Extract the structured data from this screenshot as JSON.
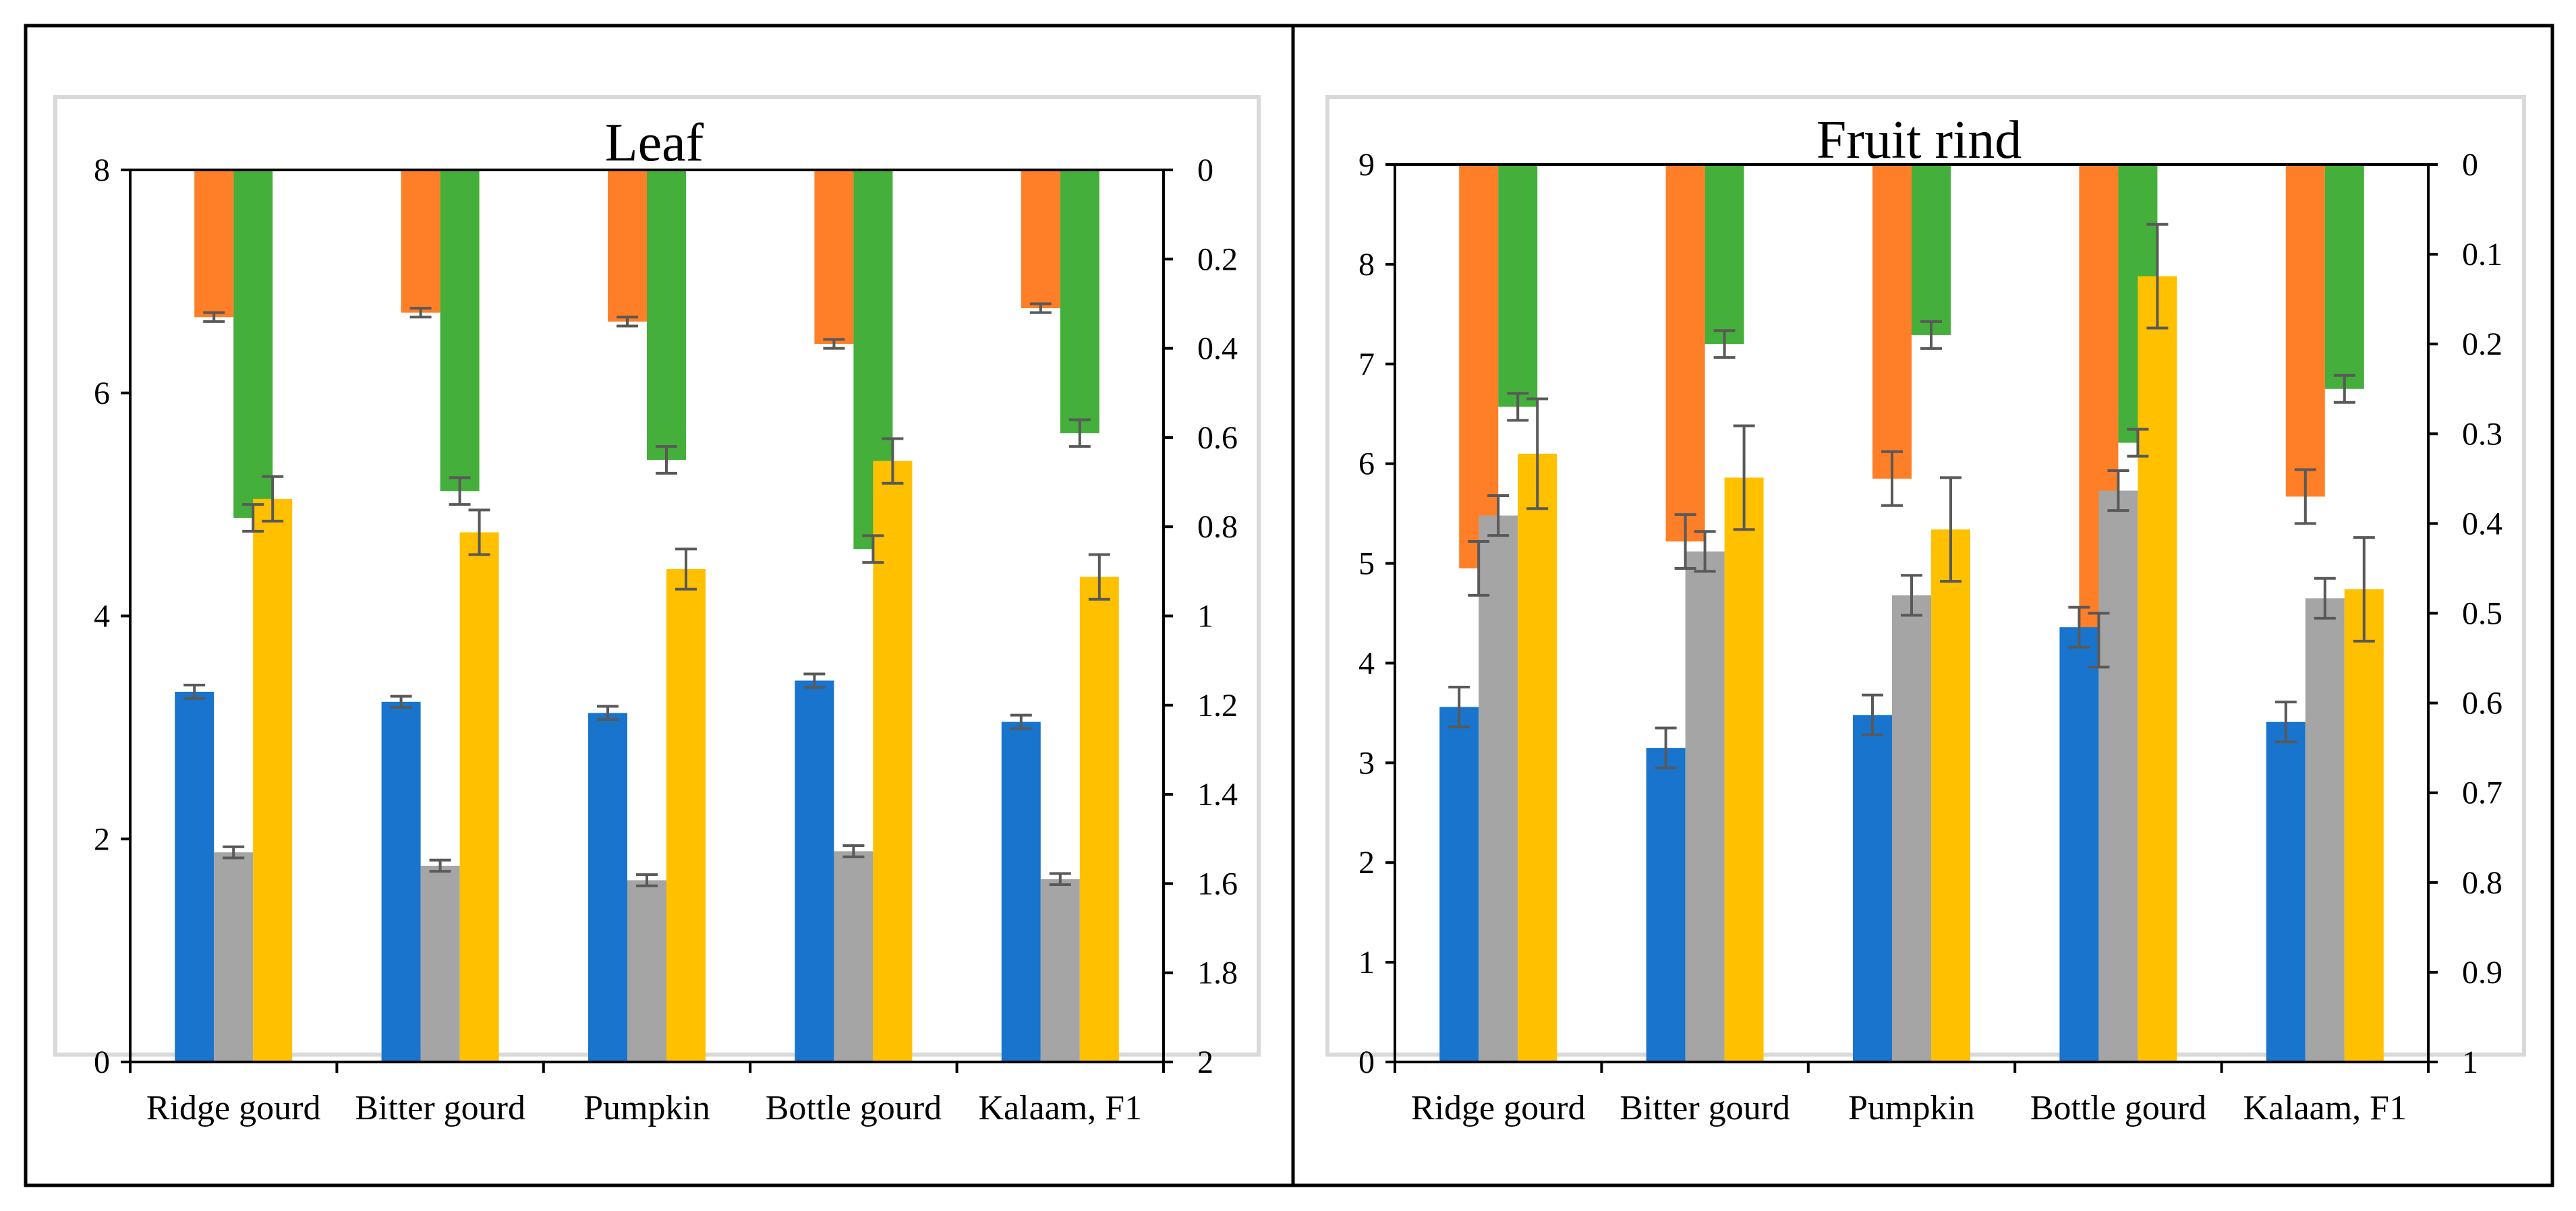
{
  "colors": {
    "blue": "#1874cd",
    "orange": "#fe7f27",
    "gray": "#a5a5a5",
    "yellow": "#ffc000",
    "green": "#44af3a",
    "error_bar": "#595959",
    "border": "#000000",
    "plot_border": "#d9d9d9"
  },
  "chart_data": [
    {
      "type": "bar",
      "title": "Leaf",
      "categories": [
        "Ridge gourd",
        "Bitter gourd",
        "Pumpkin",
        "Bottle gourd",
        "Kalaam, F1"
      ],
      "left_axis": {
        "range": [
          0,
          8
        ],
        "ticks": [
          0,
          2,
          4,
          6,
          8
        ],
        "tick_labels": [
          "0",
          "2",
          "4",
          "6",
          "8"
        ]
      },
      "right_axis": {
        "range": [
          0,
          2
        ],
        "inverted": true,
        "ticks": [
          0,
          0.2,
          0.4,
          0.6,
          0.8,
          1,
          1.2,
          1.4,
          1.6,
          1.8,
          2
        ],
        "tick_labels": [
          "0",
          "0.2",
          "0.4",
          "0.6",
          "0.8",
          "1",
          "1.2",
          "1.4",
          "1.6",
          "1.8",
          "2"
        ]
      },
      "left_series": [
        {
          "color": "blue",
          "values": [
            3.32,
            3.23,
            3.13,
            3.42,
            3.05
          ],
          "errors": [
            0.06,
            0.05,
            0.06,
            0.06,
            0.06
          ]
        },
        {
          "color": "gray",
          "values": [
            1.88,
            1.76,
            1.63,
            1.89,
            1.64
          ],
          "errors": [
            0.05,
            0.05,
            0.05,
            0.05,
            0.05
          ]
        },
        {
          "color": "yellow",
          "values": [
            5.05,
            4.75,
            4.42,
            5.39,
            4.35
          ],
          "errors": [
            0.2,
            0.2,
            0.18,
            0.2,
            0.2
          ]
        }
      ],
      "right_series": [
        {
          "color": "orange",
          "values": [
            0.33,
            0.32,
            0.34,
            0.39,
            0.31
          ],
          "errors": [
            0.01,
            0.01,
            0.01,
            0.01,
            0.01
          ]
        },
        {
          "color": "green",
          "values": [
            0.78,
            0.72,
            0.65,
            0.85,
            0.59
          ],
          "errors": [
            0.03,
            0.03,
            0.03,
            0.03,
            0.03
          ]
        }
      ],
      "grid": false,
      "legend": "none"
    },
    {
      "type": "bar",
      "title": "Fruit rind",
      "categories": [
        "Ridge gourd",
        "Bitter gourd",
        "Pumpkin",
        "Bottle gourd",
        "Kalaam, F1"
      ],
      "left_axis": {
        "range": [
          0,
          9
        ],
        "ticks": [
          0,
          1,
          2,
          3,
          4,
          5,
          6,
          7,
          8,
          9
        ],
        "tick_labels": [
          "0",
          "1",
          "2",
          "3",
          "4",
          "5",
          "6",
          "7",
          "8",
          "9"
        ]
      },
      "right_axis": {
        "range": [
          0,
          1
        ],
        "inverted": true,
        "ticks": [
          0,
          0.1,
          0.2,
          0.3,
          0.4,
          0.5,
          0.6,
          0.7,
          0.8,
          0.9,
          1
        ],
        "tick_labels": [
          "0",
          "0.1",
          "0.2",
          "0.3",
          "0.4",
          "0.5",
          "0.6",
          "0.7",
          "0.8",
          "0.9",
          "1"
        ]
      },
      "left_series": [
        {
          "color": "blue",
          "values": [
            3.56,
            3.15,
            3.48,
            4.36,
            3.41
          ],
          "errors": [
            0.2,
            0.2,
            0.2,
            0.2,
            0.2
          ]
        },
        {
          "color": "gray",
          "values": [
            5.48,
            5.12,
            4.68,
            5.73,
            4.65
          ],
          "errors": [
            0.2,
            0.2,
            0.2,
            0.2,
            0.2
          ]
        },
        {
          "color": "yellow",
          "values": [
            6.1,
            5.86,
            5.34,
            7.88,
            4.74
          ],
          "errors": [
            0.55,
            0.52,
            0.52,
            0.52,
            0.52
          ]
        }
      ],
      "right_series": [
        {
          "color": "orange",
          "values": [
            0.45,
            0.42,
            0.35,
            0.53,
            0.37
          ],
          "errors": [
            0.03,
            0.03,
            0.03,
            0.03,
            0.03
          ]
        },
        {
          "color": "green",
          "values": [
            0.27,
            0.2,
            0.19,
            0.31,
            0.25
          ],
          "errors": [
            0.015,
            0.015,
            0.015,
            0.015,
            0.015
          ]
        }
      ],
      "grid": false,
      "legend": "none"
    }
  ]
}
